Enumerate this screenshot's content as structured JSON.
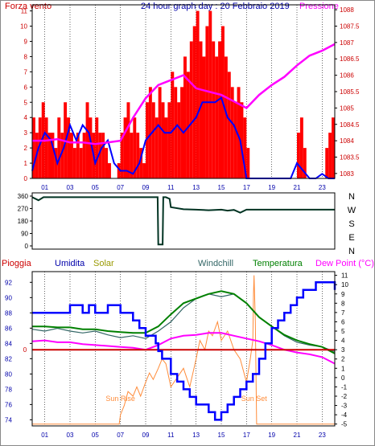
{
  "colors": {
    "wind": "#ff0000",
    "gust": "#0000ff",
    "pressure": "#ff00ff",
    "direction": "#003322",
    "humidity": "#0000ff",
    "solar": "#ff8c3a",
    "windchill": "#336666",
    "temperature": "#008000",
    "dewpoint": "#ff00ff",
    "rain": "#cc0000",
    "label_red": "#cc0000",
    "label_blue": "#0000aa",
    "label_gold": "#999900",
    "label_teal": "#336666",
    "label_green": "#008000"
  },
  "chart_data": [
    {
      "type": "line",
      "title": "24 hour graph day : 20 Febbraio 2019",
      "left_label": "Forza vento",
      "right_label": "Pressione",
      "x_ticks": [
        "01",
        "03",
        "05",
        "07",
        "09",
        "11",
        "13",
        "15",
        "17",
        "19",
        "21",
        "23"
      ],
      "y_left_ticks": [
        0,
        1,
        2,
        3,
        4,
        5,
        6,
        7,
        8,
        9,
        10,
        11
      ],
      "y_left_range": [
        0,
        11.4
      ],
      "y_right_ticks": [
        "1083",
        "1083.5",
        "1084",
        "1084.5",
        "1085",
        "1085.5",
        "1086",
        "1086.5",
        "1087",
        "1087.5",
        "1088"
      ],
      "y_right_range": [
        1082.85,
        1088.15
      ],
      "series": [
        {
          "kind": "bars",
          "hours": [
            0.0,
            0.25,
            0.5,
            0.75,
            1.0,
            1.25,
            1.5,
            1.75,
            2.0,
            2.25,
            2.5,
            2.75,
            3.0,
            3.25,
            3.5,
            3.75,
            4.0,
            4.25,
            4.5,
            4.75,
            5.0,
            5.25,
            5.5,
            5.75,
            6.0,
            6.25,
            6.5,
            6.75,
            7.0,
            7.25,
            7.5,
            7.75,
            8.0,
            8.25,
            8.5,
            8.75,
            9.0,
            9.25,
            9.5,
            9.75,
            10.0,
            10.25,
            10.5,
            10.75,
            11.0,
            11.25,
            11.5,
            11.75,
            12.0,
            12.25,
            12.5,
            12.75,
            13.0,
            13.25,
            13.5,
            13.75,
            14.0,
            14.25,
            14.5,
            14.75,
            15.0,
            15.25,
            15.5,
            15.75,
            16.0,
            16.25,
            16.5,
            16.75,
            17.0,
            17.25,
            17.5,
            17.75,
            18.0,
            18.25,
            18.5,
            18.75,
            19.0,
            19.25,
            19.5,
            19.75,
            20.0,
            20.25,
            20.5,
            20.75,
            21.0,
            21.25,
            21.5,
            21.75,
            22.0,
            22.25,
            22.5,
            22.75,
            23.0,
            23.25,
            23.5,
            23.75
          ],
          "values": [
            4,
            3,
            4,
            5,
            4,
            3,
            3,
            2,
            4,
            3,
            5,
            4,
            3,
            2,
            3,
            2,
            3,
            5,
            4,
            3,
            4,
            3,
            3,
            2,
            1,
            0,
            0,
            1,
            3,
            4,
            5,
            3,
            4,
            3,
            2,
            1,
            5,
            6,
            5,
            4,
            6,
            5,
            4,
            5,
            7,
            6,
            5,
            6,
            8,
            7,
            9,
            10,
            11,
            9,
            8,
            10,
            11,
            9,
            8,
            9,
            10,
            8,
            7,
            6,
            5,
            6,
            5,
            4,
            2,
            0,
            0,
            0,
            0,
            0,
            0,
            0,
            0,
            0,
            0,
            0,
            0,
            0,
            0,
            0,
            3,
            4,
            2,
            0,
            0,
            0,
            0,
            0,
            0,
            2,
            3,
            4
          ]
        },
        {
          "kind": "line",
          "hours": [
            0,
            0.5,
            1,
            1.5,
            2,
            2.5,
            3,
            3.5,
            4,
            4.5,
            5,
            5.5,
            6,
            6.5,
            7,
            7.5,
            8,
            8.5,
            9,
            9.5,
            10,
            10.5,
            11,
            11.5,
            12,
            12.5,
            13,
            13.5,
            14,
            14.5,
            15,
            15.5,
            16,
            16.5,
            17,
            17.5,
            18,
            18.5,
            19,
            19.5,
            20,
            20.5,
            21,
            21.5,
            22,
            22.5,
            23,
            23.5,
            24
          ],
          "values": [
            0.5,
            2,
            3,
            2.5,
            1,
            2,
            3.5,
            2.5,
            3.5,
            3,
            1,
            2,
            2.5,
            1,
            0.5,
            0.5,
            0.3,
            1,
            2.5,
            3,
            3.5,
            3,
            3,
            3.5,
            3,
            3.5,
            4,
            5,
            5,
            5,
            5.3,
            4,
            3.5,
            2.5,
            0,
            0,
            0,
            0,
            0,
            0,
            0,
            0,
            1,
            0.5,
            0,
            0,
            0.3,
            0,
            0
          ]
        },
        {
          "kind": "line",
          "axis": "right",
          "hours": [
            0,
            1,
            2,
            3,
            4,
            5,
            6,
            7,
            8,
            9,
            10,
            11,
            12,
            13,
            14,
            15,
            16,
            17,
            18,
            19,
            20,
            21,
            22,
            23,
            24
          ],
          "values": [
            1084.0,
            1084.0,
            1084.05,
            1083.95,
            1083.95,
            1083.9,
            1083.95,
            1084.0,
            1084.7,
            1085.3,
            1085.7,
            1085.85,
            1086.0,
            1085.6,
            1085.5,
            1085.4,
            1085.2,
            1085.0,
            1085.4,
            1085.7,
            1085.95,
            1086.3,
            1086.6,
            1086.75,
            1086.95
          ]
        }
      ]
    },
    {
      "type": "line",
      "right_label_letters": [
        "N",
        "W",
        "S",
        "E",
        "N"
      ],
      "x_ticks": [],
      "y_ticks": [
        0,
        90,
        180,
        270,
        360
      ],
      "y_range": [
        0,
        360
      ],
      "series": [
        {
          "hours": [
            0,
            0.5,
            0.9,
            1,
            2,
            3,
            4,
            5,
            6,
            7,
            8,
            9,
            9.95,
            10,
            10.35,
            10.4,
            10.6,
            10.9,
            11,
            12,
            13,
            14,
            15,
            15.5,
            16,
            16.5,
            17,
            18,
            19,
            20,
            21,
            22,
            23,
            24
          ],
          "values": [
            352,
            330,
            352,
            352,
            352,
            352,
            352,
            352,
            352,
            352,
            352,
            352,
            352,
            10,
            10,
            352,
            352,
            340,
            280,
            265,
            262,
            258,
            262,
            255,
            260,
            240,
            262,
            262,
            262,
            262,
            262,
            262,
            262,
            262
          ]
        }
      ]
    },
    {
      "type": "line",
      "top_labels": [
        "Pioggia",
        "Umidita",
        "Solar",
        "Windchill",
        "Temperatura",
        "Dew Point (°C)"
      ],
      "x_ticks": [
        "01",
        "03",
        "05",
        "07",
        "09",
        "11",
        "13",
        "15",
        "17",
        "19",
        "21",
        "23"
      ],
      "y_left_ticks": [
        74,
        76,
        78,
        80,
        82,
        84,
        86,
        88,
        90,
        92
      ],
      "y_left_range": [
        73.2,
        93.4
      ],
      "y_right_ticks": [
        -5,
        -4,
        -3,
        -2,
        -1,
        0,
        1,
        2,
        3,
        4,
        5,
        6,
        7,
        8,
        9,
        10,
        11
      ],
      "y_right_range": [
        -5.2,
        11.4
      ],
      "rain_tick": "0",
      "annotations": [
        {
          "text": "Sun Rise",
          "hour": 7.0
        },
        {
          "text": "Sun Set",
          "hour": 17.6
        }
      ],
      "series": [
        {
          "name": "Umidita",
          "axis": "left",
          "hours": [
            0,
            1,
            2,
            3,
            4,
            4.5,
            5,
            6,
            7,
            8,
            8.5,
            9,
            9.3,
            9.8,
            10,
            10.3,
            11,
            11.5,
            12,
            12.5,
            13,
            13.5,
            14,
            14.5,
            15,
            15.5,
            16,
            16.5,
            17,
            17.5,
            18,
            18.5,
            19,
            19.5,
            20,
            20.5,
            21,
            21.5,
            22,
            22.5,
            23,
            23.5,
            24
          ],
          "values": [
            88,
            88,
            88,
            89,
            88,
            89,
            88,
            89,
            88,
            87,
            86,
            85,
            85,
            84,
            83,
            82,
            80,
            79,
            78,
            77,
            76,
            76,
            75,
            74,
            75,
            76,
            77,
            78,
            79,
            80,
            82,
            84,
            86,
            87,
            88,
            89,
            90,
            91,
            91,
            92,
            92,
            92,
            91
          ]
        },
        {
          "name": "Windchill",
          "axis": "right",
          "hours": [
            0,
            1,
            2,
            3,
            4,
            5,
            6,
            7,
            8,
            9,
            10,
            11,
            12,
            13,
            14,
            15,
            16,
            17,
            18,
            19,
            20,
            21,
            22,
            23,
            24
          ],
          "values": [
            5.2,
            5,
            5.3,
            5,
            4.8,
            5,
            4.6,
            4.3,
            4.5,
            4.2,
            5,
            6,
            7.5,
            8.5,
            9,
            8.7,
            9,
            8,
            6.5,
            5.5,
            4.5,
            3.8,
            3.5,
            3.3,
            2.8
          ]
        },
        {
          "name": "Temperatura",
          "axis": "right",
          "hours": [
            0,
            1,
            2,
            3,
            4,
            5,
            6,
            7,
            8,
            9,
            10,
            11,
            12,
            13,
            14,
            15,
            16,
            17,
            18,
            19,
            20,
            21,
            22,
            23,
            24
          ],
          "values": [
            5.5,
            5.5,
            5.4,
            5.4,
            5.2,
            5.2,
            5,
            4.9,
            4.8,
            4.8,
            5.5,
            6.8,
            8,
            8.5,
            9,
            9.3,
            9,
            8,
            6.5,
            5.5,
            4.6,
            4,
            3.6,
            3.3,
            2.6
          ]
        },
        {
          "name": "Dew Point (°C)",
          "axis": "right",
          "hours": [
            0,
            1,
            2,
            3,
            4,
            5,
            6,
            7,
            8,
            9,
            10,
            11,
            12,
            13,
            14,
            15,
            16,
            17,
            18,
            19,
            20,
            21,
            22,
            23,
            24
          ],
          "values": [
            3.9,
            4,
            3.8,
            3.8,
            3.6,
            3.5,
            3.4,
            3.3,
            3.2,
            3.0,
            3.5,
            4.2,
            4.5,
            4.6,
            4.8,
            4.8,
            4.5,
            4.2,
            3.9,
            3.5,
            3.0,
            2.7,
            2.5,
            2.2,
            1.5
          ]
        },
        {
          "name": "Solar",
          "axis": "right",
          "hours": [
            0,
            6.9,
            7.0,
            7.3,
            7.6,
            8,
            8.3,
            8.6,
            9,
            9.3,
            9.6,
            10,
            10.3,
            10.6,
            11,
            11.5,
            12,
            12.5,
            13,
            13.3,
            13.7,
            14,
            14.3,
            14.7,
            15,
            15.5,
            16,
            16.5,
            17,
            17.3,
            17.5,
            17.55,
            17.6,
            17.7,
            17.8,
            18,
            24
          ],
          "values": [
            -5,
            -5,
            -4,
            -3,
            -1.5,
            -2,
            -1,
            -2,
            -0.5,
            0.5,
            -0.2,
            1,
            2,
            1.5,
            -1,
            0,
            1,
            -1,
            2,
            4,
            3,
            5,
            4.5,
            6,
            4,
            5,
            3,
            2,
            -0.5,
            2,
            4,
            9,
            11,
            6,
            -5,
            -5,
            -5
          ]
        },
        {
          "name": "Pioggia",
          "axis": "right",
          "hours": [
            0,
            24
          ],
          "values": [
            3,
            3
          ]
        }
      ]
    }
  ]
}
